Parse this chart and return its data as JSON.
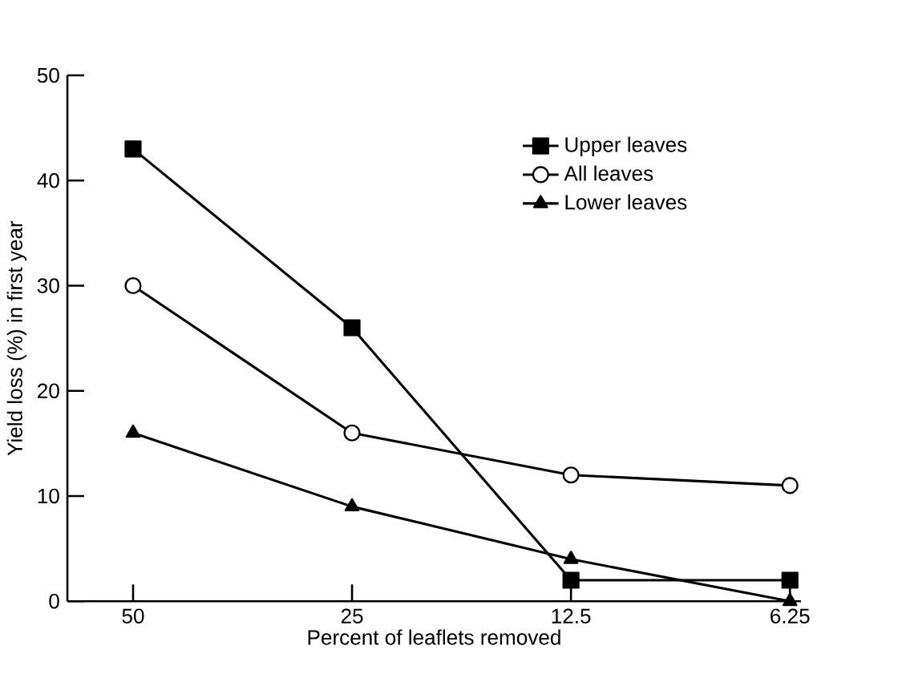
{
  "chart_data": {
    "type": "line",
    "xlabel": "Percent of leaflets removed",
    "ylabel": "Yield loss (%) in first year",
    "categories": [
      "50",
      "25",
      "12.5",
      "6.25"
    ],
    "ylim": [
      0,
      50
    ],
    "yticks": [
      0,
      10,
      20,
      30,
      40,
      50
    ],
    "grid": false,
    "legend": "top right",
    "line_style": "solid",
    "series": [
      {
        "name": "Upper leaves",
        "color": "#000000",
        "marker": "square",
        "values": [
          43,
          26,
          2,
          2
        ]
      },
      {
        "name": "All leaves",
        "color": "#000000",
        "marker": "circle",
        "values": [
          30,
          16,
          12,
          11
        ]
      },
      {
        "name": "Lower leaves",
        "color": "#000000",
        "marker": "triangle",
        "values": [
          16,
          9,
          4,
          0
        ]
      }
    ]
  }
}
